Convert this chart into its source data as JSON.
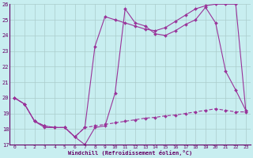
{
  "background_color": "#c8eef0",
  "grid_color": "#aacccc",
  "line_color": "#993399",
  "xlim": [
    -0.5,
    23.5
  ],
  "ylim": [
    17,
    26
  ],
  "yticks": [
    17,
    18,
    19,
    20,
    21,
    22,
    23,
    24,
    25,
    26
  ],
  "xticks": [
    0,
    1,
    2,
    3,
    4,
    5,
    6,
    7,
    8,
    9,
    10,
    11,
    12,
    13,
    14,
    15,
    16,
    17,
    18,
    19,
    20,
    21,
    22,
    23
  ],
  "xlabel": "Windchill (Refroidissement éolien,°C)",
  "series1_x": [
    0,
    1,
    2,
    3,
    4,
    5,
    6,
    7,
    8,
    9,
    10,
    11,
    12,
    13,
    14,
    15,
    16,
    17,
    18,
    19,
    20,
    21,
    22,
    23
  ],
  "series1_y": [
    20.0,
    19.6,
    18.5,
    18.1,
    18.1,
    18.1,
    17.5,
    17.0,
    18.1,
    18.2,
    20.3,
    25.7,
    24.8,
    24.6,
    24.1,
    24.0,
    24.3,
    24.7,
    25.0,
    25.8,
    24.8,
    21.7,
    20.5,
    19.2
  ],
  "series2_x": [
    0,
    1,
    2,
    3,
    4,
    5,
    6,
    7,
    8,
    9,
    10,
    11,
    12,
    13,
    14,
    15,
    16,
    17,
    18,
    19,
    20,
    21,
    22,
    23
  ],
  "series2_y": [
    20.0,
    19.6,
    18.5,
    18.2,
    18.1,
    18.1,
    17.5,
    18.1,
    23.3,
    25.2,
    25.0,
    24.8,
    24.6,
    24.4,
    24.3,
    24.5,
    24.9,
    25.3,
    25.7,
    25.9,
    26.0,
    26.0,
    26.0,
    19.2
  ],
  "series3_x": [
    0,
    1,
    2,
    3,
    4,
    5,
    6,
    7,
    8,
    9,
    10,
    11,
    12,
    13,
    14,
    15,
    16,
    17,
    18,
    19,
    20,
    21,
    22,
    23
  ],
  "series3_y": [
    20.0,
    19.6,
    18.5,
    18.2,
    18.1,
    18.1,
    17.5,
    18.1,
    18.2,
    18.3,
    18.4,
    18.5,
    18.6,
    18.7,
    18.75,
    18.85,
    18.9,
    19.0,
    19.1,
    19.2,
    19.3,
    19.2,
    19.1,
    19.1
  ]
}
